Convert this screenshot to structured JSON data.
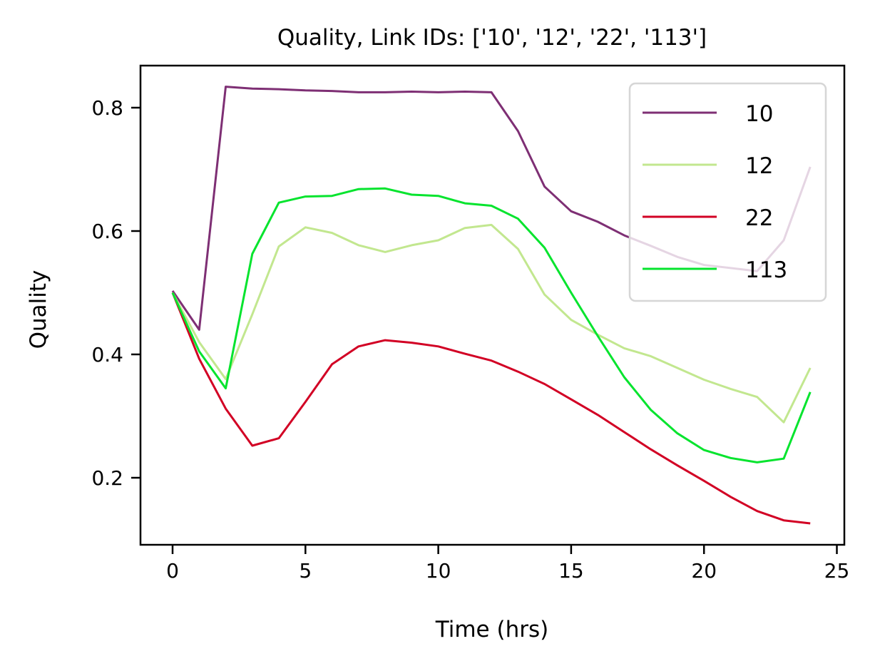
{
  "chart_data": {
    "type": "line",
    "title": "Quality, Link IDs: ['10', '12', '22', '113']",
    "xlabel": "Time (hrs)",
    "ylabel": "Quality",
    "xlim": [
      -1.2,
      25.2
    ],
    "ylim": [
      0.09,
      0.866
    ],
    "xticks": [
      0,
      5,
      10,
      15,
      20,
      25
    ],
    "xtick_labels": [
      "0",
      "5",
      "10",
      "15",
      "20",
      "25"
    ],
    "yticks": [
      0.2,
      0.4,
      0.6,
      0.8
    ],
    "ytick_labels": [
      "0.2",
      "0.4",
      "0.6",
      "0.8"
    ],
    "grid": false,
    "legend_position": "upper right",
    "x": [
      0,
      1,
      2,
      3,
      4,
      5,
      6,
      7,
      8,
      9,
      10,
      11,
      12,
      13,
      14,
      15,
      16,
      17,
      18,
      19,
      20,
      21,
      22,
      23,
      24
    ],
    "series": [
      {
        "name": "10",
        "color": "#7e2f74",
        "values": [
          0.503,
          0.44,
          0.834,
          0.831,
          0.83,
          0.828,
          0.827,
          0.825,
          0.825,
          0.826,
          0.825,
          0.826,
          0.825,
          0.762,
          0.672,
          0.632,
          0.615,
          0.593,
          0.576,
          0.558,
          0.545,
          0.54,
          0.535,
          0.585,
          0.704
        ]
      },
      {
        "name": "12",
        "color": "#c2e78f",
        "values": [
          0.5,
          0.42,
          0.36,
          0.465,
          0.575,
          0.606,
          0.597,
          0.577,
          0.566,
          0.577,
          0.585,
          0.605,
          0.61,
          0.571,
          0.497,
          0.456,
          0.432,
          0.41,
          0.397,
          0.378,
          0.359,
          0.344,
          0.331,
          0.29,
          0.378
        ]
      },
      {
        "name": "22",
        "color": "#d20024",
        "values": [
          0.5,
          0.393,
          0.312,
          0.252,
          0.264,
          0.323,
          0.384,
          0.413,
          0.423,
          0.419,
          0.413,
          0.401,
          0.39,
          0.372,
          0.352,
          0.327,
          0.302,
          0.274,
          0.246,
          0.22,
          0.195,
          0.169,
          0.146,
          0.131,
          0.126
        ]
      },
      {
        "name": "113",
        "color": "#06e42e",
        "values": [
          0.5,
          0.405,
          0.345,
          0.563,
          0.646,
          0.656,
          0.657,
          0.668,
          0.669,
          0.659,
          0.657,
          0.645,
          0.641,
          0.62,
          0.573,
          0.5,
          0.43,
          0.363,
          0.31,
          0.272,
          0.245,
          0.232,
          0.225,
          0.231,
          0.339
        ]
      }
    ]
  }
}
